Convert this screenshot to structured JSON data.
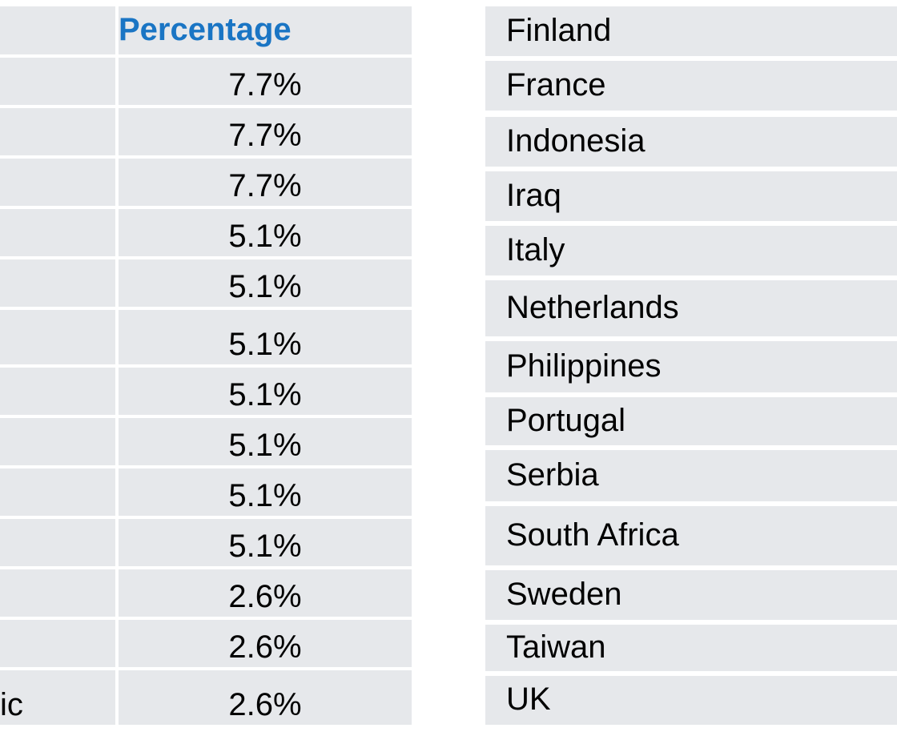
{
  "left_table": {
    "header": "Percentage",
    "values": [
      "7.7%",
      "7.7%",
      "7.7%",
      "5.1%",
      "5.1%",
      "5.1%",
      "5.1%",
      "5.1%",
      "5.1%",
      "5.1%",
      "2.6%",
      "2.6%",
      "2.6%"
    ],
    "last_row_label": "ic"
  },
  "right_table": {
    "rows": [
      "Finland",
      "France",
      "Indonesia",
      "Iraq",
      "Italy",
      "Netherlands",
      "Philippines",
      "Portugal",
      "Serbia",
      "South Africa",
      "Sweden",
      "Taiwan",
      "UK"
    ]
  }
}
